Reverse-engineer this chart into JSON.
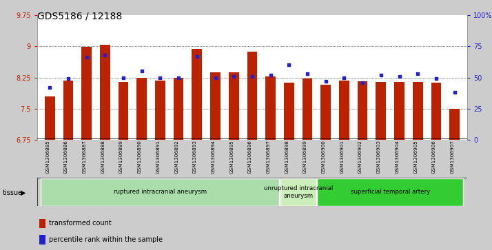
{
  "title": "GDS5186 / 12188",
  "samples": [
    "GSM1306885",
    "GSM1306886",
    "GSM1306887",
    "GSM1306888",
    "GSM1306889",
    "GSM1306890",
    "GSM1306891",
    "GSM1306892",
    "GSM1306893",
    "GSM1306894",
    "GSM1306895",
    "GSM1306896",
    "GSM1306897",
    "GSM1306898",
    "GSM1306899",
    "GSM1306900",
    "GSM1306901",
    "GSM1306902",
    "GSM1306903",
    "GSM1306904",
    "GSM1306905",
    "GSM1306906",
    "GSM1306907"
  ],
  "bar_values": [
    7.8,
    8.17,
    8.99,
    9.03,
    8.15,
    8.25,
    8.18,
    8.25,
    8.94,
    8.37,
    8.37,
    8.87,
    8.28,
    8.12,
    8.22,
    8.08,
    8.18,
    8.16,
    8.15,
    8.15,
    8.15,
    8.13,
    7.5
  ],
  "percentile_values": [
    42,
    49,
    66,
    68,
    50,
    55,
    50,
    50,
    67,
    50,
    51,
    51,
    52,
    60,
    53,
    47,
    50,
    46,
    52,
    51,
    53,
    49,
    38
  ],
  "ylim": [
    6.75,
    9.75
  ],
  "yticks": [
    6.75,
    7.5,
    8.25,
    9.0,
    9.75
  ],
  "ytick_labels": [
    "6.75",
    "7.5",
    "8.25",
    "9",
    "9.75"
  ],
  "y2lim": [
    0,
    100
  ],
  "y2ticks": [
    0,
    25,
    50,
    75,
    100
  ],
  "y2tick_labels": [
    "0",
    "25",
    "50",
    "75",
    "100%"
  ],
  "bar_color": "#bb2200",
  "dot_color": "#2222cc",
  "bg_color": "#cccccc",
  "plot_bg": "#ffffff",
  "xtick_bg": "#cccccc",
  "groups": [
    {
      "label": "ruptured intracranial aneurysm",
      "start": 0,
      "end": 12,
      "color": "#aaddaa"
    },
    {
      "label": "unruptured intracranial\naneurysm",
      "start": 13,
      "end": 14,
      "color": "#cceebb"
    },
    {
      "label": "superficial temporal artery",
      "start": 15,
      "end": 22,
      "color": "#33cc33"
    }
  ],
  "tissue_label": "tissue",
  "legend_bar_label": "transformed count",
  "legend_dot_label": "percentile rank within the sample",
  "title_fontsize": 10,
  "tick_fontsize": 7,
  "sample_fontsize": 5.2
}
